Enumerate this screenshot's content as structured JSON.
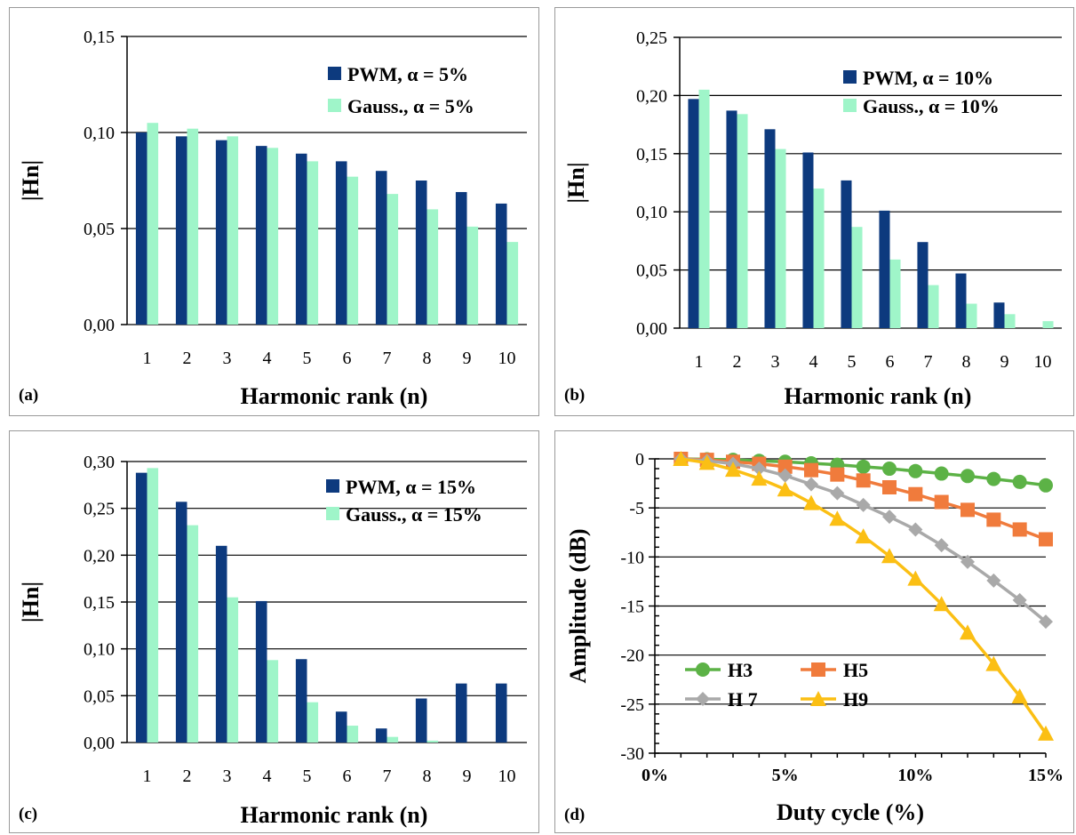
{
  "colors": {
    "pwm": "#0d3a7e",
    "gauss": "#9ff5c9",
    "h3": "#5cb246",
    "h5": "#f07b3c",
    "h7": "#a9a9a9",
    "h9": "#fbbf14"
  },
  "chart_data": [
    {
      "type": "bar",
      "panel_label": "(a)",
      "xlabel": "Harmonic rank (n)",
      "ylabel": "|Hn|",
      "ylim": [
        0,
        0.15
      ],
      "yticks": [
        "0,00",
        "0,05",
        "0,10",
        "0,15"
      ],
      "categories": [
        "1",
        "2",
        "3",
        "4",
        "5",
        "6",
        "7",
        "8",
        "9",
        "10"
      ],
      "legend_position": "top-right",
      "series": [
        {
          "name": "PWM, α = 5%",
          "values": [
            0.1,
            0.098,
            0.096,
            0.093,
            0.089,
            0.085,
            0.08,
            0.075,
            0.069,
            0.063
          ]
        },
        {
          "name": "Gauss., α = 5%",
          "values": [
            0.105,
            0.102,
            0.098,
            0.092,
            0.085,
            0.077,
            0.068,
            0.06,
            0.051,
            0.043
          ]
        }
      ]
    },
    {
      "type": "bar",
      "panel_label": "(b)",
      "xlabel": "Harmonic rank (n)",
      "ylabel": "|Hn|",
      "ylim": [
        0,
        0.25
      ],
      "yticks": [
        "0,00",
        "0,05",
        "0,10",
        "0,15",
        "0,20",
        "0,25"
      ],
      "categories": [
        "1",
        "2",
        "3",
        "4",
        "5",
        "6",
        "7",
        "8",
        "9",
        "10"
      ],
      "legend_position": "top-right",
      "series": [
        {
          "name": "PWM, α = 10%",
          "values": [
            0.197,
            0.187,
            0.171,
            0.151,
            0.127,
            0.101,
            0.074,
            0.047,
            0.022,
            0.0
          ]
        },
        {
          "name": "Gauss., α = 10%",
          "values": [
            0.205,
            0.184,
            0.154,
            0.12,
            0.087,
            0.059,
            0.037,
            0.021,
            0.012,
            0.006
          ]
        }
      ]
    },
    {
      "type": "bar",
      "panel_label": "(c)",
      "xlabel": "Harmonic rank (n)",
      "ylabel": "|Hn|",
      "ylim": [
        0,
        0.3
      ],
      "yticks": [
        "0,00",
        "0,05",
        "0,10",
        "0,15",
        "0,20",
        "0,25",
        "0,30"
      ],
      "categories": [
        "1",
        "2",
        "3",
        "4",
        "5",
        "6",
        "7",
        "8",
        "9",
        "10"
      ],
      "legend_position": "top-right",
      "series": [
        {
          "name": "PWM, α = 15%",
          "values": [
            0.288,
            0.257,
            0.21,
            0.151,
            0.089,
            0.033,
            0.015,
            0.047,
            0.063,
            0.063
          ]
        },
        {
          "name": "Gauss., α = 15%",
          "values": [
            0.293,
            0.232,
            0.155,
            0.088,
            0.043,
            0.018,
            0.006,
            0.002,
            0.0,
            0.0
          ]
        }
      ]
    },
    {
      "type": "line",
      "panel_label": "(d)",
      "xlabel": "Duty cycle (%)",
      "ylabel": "Amplitude (dB)",
      "xlim": [
        0,
        15
      ],
      "ylim": [
        -30,
        0
      ],
      "xticks": [
        "0%",
        "5%",
        "10%",
        "15%"
      ],
      "xtick_values": [
        0,
        5,
        10,
        15
      ],
      "yticks": [
        "-30",
        "-25",
        "-20",
        "-15",
        "-10",
        "-5",
        "0"
      ],
      "x": [
        1,
        2,
        3,
        4,
        5,
        6,
        7,
        8,
        9,
        10,
        11,
        12,
        13,
        14,
        15
      ],
      "legend_position": "bottom-left",
      "series": [
        {
          "name": "H3",
          "marker": "circle",
          "values": [
            0,
            -0.05,
            -0.1,
            -0.2,
            -0.3,
            -0.45,
            -0.6,
            -0.8,
            -1.0,
            -1.25,
            -1.5,
            -1.75,
            -2.05,
            -2.35,
            -2.7
          ]
        },
        {
          "name": "H5",
          "marker": "square",
          "values": [
            0,
            -0.1,
            -0.3,
            -0.5,
            -0.8,
            -1.15,
            -1.6,
            -2.2,
            -2.9,
            -3.6,
            -4.4,
            -5.2,
            -6.2,
            -7.2,
            -8.2
          ]
        },
        {
          "name": "H 7",
          "marker": "diamond",
          "values": [
            0,
            -0.2,
            -0.5,
            -1.0,
            -1.7,
            -2.6,
            -3.5,
            -4.7,
            -5.9,
            -7.2,
            -8.8,
            -10.5,
            -12.4,
            -14.4,
            -16.6
          ]
        },
        {
          "name": "H9",
          "marker": "triangle",
          "values": [
            0,
            -0.4,
            -1.1,
            -2.0,
            -3.1,
            -4.5,
            -6.1,
            -7.9,
            -9.9,
            -12.2,
            -14.8,
            -17.7,
            -20.9,
            -24.2,
            -28.0
          ]
        }
      ]
    }
  ]
}
